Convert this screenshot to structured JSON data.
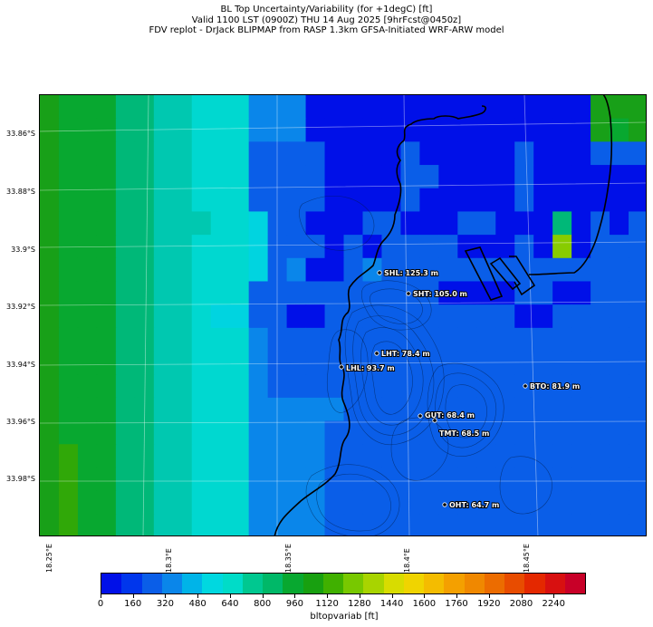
{
  "title": {
    "line1": "BL Top Uncertainty/Variability (for +1degC) [ft]",
    "line2": "Valid 1100 LST (0900Z) THU 14 Aug 2025 [9hrFcst@0450z]",
    "line3": "FDV replot - DrJack BLIPMAP from RASP 1.3km GFSA-Initiated WRF-ARW model"
  },
  "lat_labels": [
    "33.86°S",
    "33.88°S",
    "33.9°S",
    "33.92°S",
    "33.94°S",
    "33.96°S",
    "33.98°S"
  ],
  "lon_labels": [
    "18.25°E",
    "18.3°E",
    "18.35°E",
    "18.4°E",
    "18.45°E"
  ],
  "sites": [
    {
      "label": "SHL: 125.3 m"
    },
    {
      "label": "SHT: 105.0 m"
    },
    {
      "label": "LHT: 78.4 m"
    },
    {
      "label": "LHL: 93.7 m"
    },
    {
      "label": "BTO: 81.9 m"
    },
    {
      "label": "GUT: 68.4 m"
    },
    {
      "label": "TMT: 68.5 m"
    },
    {
      "label": "OHT: 64.7 m"
    }
  ],
  "colorbar": {
    "ticks": [
      "0",
      "160",
      "320",
      "480",
      "640",
      "800",
      "960",
      "1120",
      "1280",
      "1440",
      "1600",
      "1760",
      "1920",
      "2080",
      "2240"
    ],
    "label": "bltopvariab [ft]",
    "colors": [
      "#0010e8",
      "#0036ec",
      "#0a5ee8",
      "#0a86ea",
      "#00b4e8",
      "#00d8e0",
      "#00dcc8",
      "#00c890",
      "#00b868",
      "#08a830",
      "#18a010",
      "#40b000",
      "#78c800",
      "#a8d400",
      "#d8dc00",
      "#f0d400",
      "#f4bc00",
      "#f4a000",
      "#f08800",
      "#ec6c00",
      "#e84c00",
      "#e42800",
      "#d81010",
      "#c80028"
    ],
    "min": 0,
    "max": 2240
  },
  "map_grid": {
    "rows": [
      "DBBBAA99888333111111111111111DDD",
      "DBBBAA99888333111111111111111DBD",
      "DBBBAA99888222211112111112111222",
      "DBBBAA99888222211112211112111111",
      "DBBBAA99888222211112111112111111",
      "DBBBAA999887221112211122111A1212",
      "DBBBAA998887222121222211121F1222",
      "DBBBAA99888723112322222222222222",
      "DBBBAA99888222222222211112211222",
      "DBBBAA99877221122222222221122222",
      "DBBBAA99888322222222222222222222",
      "DBBBAA99888322222222222222222222",
      "DBBBAA99888322222222222222222222",
      "DBBBAA99888333332222222222222222",
      "DBBBAA99888333322222222222222222",
      "DCBBAA99888333322222222222222222",
      "DCBBAA99888333322222222222222222",
      "DCBBAA99888333322222222222222222",
      "DCBBAA99888333322222222222222222"
    ]
  }
}
